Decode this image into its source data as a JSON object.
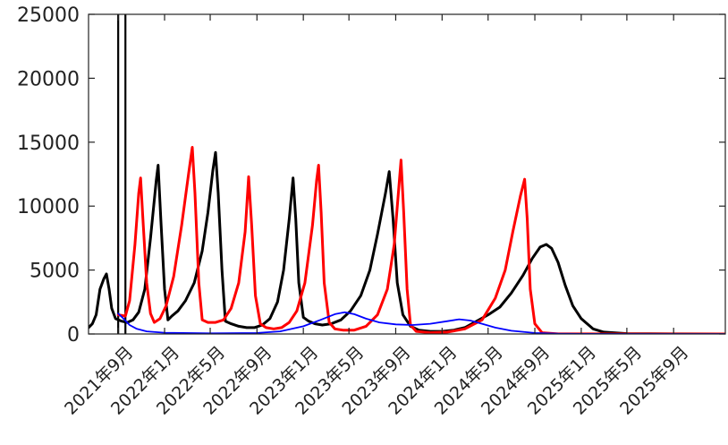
{
  "chart_data": {
    "type": "line",
    "title": "",
    "xlabel": "",
    "ylabel": "",
    "ylim": [
      0,
      25000
    ],
    "yticks": [
      0,
      5000,
      10000,
      15000,
      20000,
      25000
    ],
    "xlim": [
      "2021-06-15",
      "2026-01-15"
    ],
    "x_ticks": [
      {
        "date": "2021-09-01",
        "label": "2021年9月"
      },
      {
        "date": "2022-01-01",
        "label": "2022年1月"
      },
      {
        "date": "2022-05-01",
        "label": "2022年5月"
      },
      {
        "date": "2022-09-01",
        "label": "2022年9月"
      },
      {
        "date": "2023-01-01",
        "label": "2023年1月"
      },
      {
        "date": "2023-05-01",
        "label": "2023年5月"
      },
      {
        "date": "2023-09-01",
        "label": "2023年9月"
      },
      {
        "date": "2024-01-01",
        "label": "2024年1月"
      },
      {
        "date": "2024-05-01",
        "label": "2024年5月"
      },
      {
        "date": "2024-09-01",
        "label": "2024年9月"
      },
      {
        "date": "2025-01-01",
        "label": "2025年1月"
      },
      {
        "date": "2025-05-01",
        "label": "2025年5月"
      },
      {
        "date": "2025-09-01",
        "label": "2025年9月"
      }
    ],
    "vertical_lines": [
      "2021-09-01",
      "2021-09-20"
    ],
    "grid": false,
    "series": [
      {
        "color": "#000000",
        "points": [
          [
            "2021-06-15",
            500
          ],
          [
            "2021-06-25",
            800
          ],
          [
            "2021-07-05",
            1500
          ],
          [
            "2021-07-15",
            3500
          ],
          [
            "2021-07-25",
            4300
          ],
          [
            "2021-08-01",
            4700
          ],
          [
            "2021-08-08",
            3500
          ],
          [
            "2021-08-15",
            2000
          ],
          [
            "2021-08-25",
            1200
          ],
          [
            "2021-09-10",
            1000
          ],
          [
            "2021-09-25",
            900
          ],
          [
            "2021-10-10",
            1100
          ],
          [
            "2021-10-25",
            1700
          ],
          [
            "2021-11-10",
            3500
          ],
          [
            "2021-11-25",
            7500
          ],
          [
            "2021-12-10",
            12000
          ],
          [
            "2021-12-15",
            13200
          ],
          [
            "2021-12-22",
            9000
          ],
          [
            "2022-01-01",
            3500
          ],
          [
            "2022-01-10",
            1100
          ],
          [
            "2022-01-20",
            1400
          ],
          [
            "2022-02-05",
            1800
          ],
          [
            "2022-02-25",
            2600
          ],
          [
            "2022-03-20",
            4000
          ],
          [
            "2022-04-10",
            6500
          ],
          [
            "2022-04-25",
            9500
          ],
          [
            "2022-05-08",
            12800
          ],
          [
            "2022-05-15",
            14200
          ],
          [
            "2022-05-22",
            11000
          ],
          [
            "2022-06-01",
            5000
          ],
          [
            "2022-06-10",
            1000
          ],
          [
            "2022-06-25",
            800
          ],
          [
            "2022-07-15",
            600
          ],
          [
            "2022-08-05",
            500
          ],
          [
            "2022-08-25",
            500
          ],
          [
            "2022-09-15",
            700
          ],
          [
            "2022-10-05",
            1200
          ],
          [
            "2022-10-25",
            2500
          ],
          [
            "2022-11-10",
            5000
          ],
          [
            "2022-11-25",
            9000
          ],
          [
            "2022-12-05",
            12200
          ],
          [
            "2022-12-12",
            9000
          ],
          [
            "2022-12-20",
            4000
          ],
          [
            "2023-01-01",
            1300
          ],
          [
            "2023-01-15",
            1000
          ],
          [
            "2023-02-01",
            800
          ],
          [
            "2023-02-20",
            700
          ],
          [
            "2023-03-15",
            800
          ],
          [
            "2023-04-10",
            1100
          ],
          [
            "2023-05-05",
            1800
          ],
          [
            "2023-06-01",
            3000
          ],
          [
            "2023-06-25",
            5000
          ],
          [
            "2023-07-15",
            7800
          ],
          [
            "2023-08-05",
            11000
          ],
          [
            "2023-08-15",
            12700
          ],
          [
            "2023-08-25",
            9000
          ],
          [
            "2023-09-05",
            4000
          ],
          [
            "2023-09-20",
            1500
          ],
          [
            "2023-10-10",
            600
          ],
          [
            "2023-11-01",
            300
          ],
          [
            "2023-12-01",
            200
          ],
          [
            "2024-01-01",
            200
          ],
          [
            "2024-02-01",
            300
          ],
          [
            "2024-03-01",
            500
          ],
          [
            "2024-04-01",
            1000
          ],
          [
            "2024-05-01",
            1500
          ],
          [
            "2024-06-01",
            2100
          ],
          [
            "2024-07-01",
            3200
          ],
          [
            "2024-08-01",
            4600
          ],
          [
            "2024-08-25",
            5900
          ],
          [
            "2024-09-15",
            6800
          ],
          [
            "2024-10-01",
            7000
          ],
          [
            "2024-10-15",
            6700
          ],
          [
            "2024-11-01",
            5600
          ],
          [
            "2024-11-20",
            3800
          ],
          [
            "2024-12-10",
            2200
          ],
          [
            "2025-01-01",
            1200
          ],
          [
            "2025-02-01",
            400
          ],
          [
            "2025-03-01",
            150
          ],
          [
            "2025-05-01",
            30
          ],
          [
            "2025-09-01",
            5
          ],
          [
            "2026-01-15",
            0
          ]
        ]
      },
      {
        "color": "#ff0000",
        "points": [
          [
            "2021-09-01",
            1500
          ],
          [
            "2021-09-20",
            1400
          ],
          [
            "2021-10-01",
            2600
          ],
          [
            "2021-10-15",
            7000
          ],
          [
            "2021-10-25",
            11000
          ],
          [
            "2021-10-30",
            12200
          ],
          [
            "2021-11-05",
            9000
          ],
          [
            "2021-11-15",
            4000
          ],
          [
            "2021-11-25",
            1600
          ],
          [
            "2021-12-05",
            900
          ],
          [
            "2021-12-20",
            1200
          ],
          [
            "2022-01-05",
            2200
          ],
          [
            "2022-01-25",
            4500
          ],
          [
            "2022-02-15",
            8500
          ],
          [
            "2022-03-05",
            12500
          ],
          [
            "2022-03-15",
            14600
          ],
          [
            "2022-03-22",
            11000
          ],
          [
            "2022-04-01",
            4000
          ],
          [
            "2022-04-10",
            1100
          ],
          [
            "2022-04-25",
            900
          ],
          [
            "2022-05-15",
            900
          ],
          [
            "2022-06-05",
            1100
          ],
          [
            "2022-06-25",
            2000
          ],
          [
            "2022-07-15",
            4000
          ],
          [
            "2022-08-01",
            8000
          ],
          [
            "2022-08-10",
            12300
          ],
          [
            "2022-08-18",
            8500
          ],
          [
            "2022-08-28",
            3000
          ],
          [
            "2022-09-10",
            800
          ],
          [
            "2022-09-25",
            500
          ],
          [
            "2022-10-15",
            400
          ],
          [
            "2022-11-05",
            500
          ],
          [
            "2022-11-25",
            900
          ],
          [
            "2022-12-15",
            1800
          ],
          [
            "2023-01-05",
            4000
          ],
          [
            "2023-01-25",
            8500
          ],
          [
            "2023-02-05",
            12000
          ],
          [
            "2023-02-10",
            13200
          ],
          [
            "2023-02-17",
            9500
          ],
          [
            "2023-02-25",
            4000
          ],
          [
            "2023-03-10",
            900
          ],
          [
            "2023-03-25",
            400
          ],
          [
            "2023-04-15",
            300
          ],
          [
            "2023-05-15",
            300
          ],
          [
            "2023-06-15",
            600
          ],
          [
            "2023-07-15",
            1500
          ],
          [
            "2023-08-10",
            3500
          ],
          [
            "2023-08-28",
            7000
          ],
          [
            "2023-09-08",
            11000
          ],
          [
            "2023-09-15",
            13600
          ],
          [
            "2023-09-22",
            9500
          ],
          [
            "2023-10-01",
            3500
          ],
          [
            "2023-10-10",
            700
          ],
          [
            "2023-10-25",
            200
          ],
          [
            "2023-12-01",
            100
          ],
          [
            "2024-01-15",
            150
          ],
          [
            "2024-03-01",
            400
          ],
          [
            "2024-04-15",
            1100
          ],
          [
            "2024-05-20",
            2800
          ],
          [
            "2024-06-15",
            5000
          ],
          [
            "2024-07-05",
            8000
          ],
          [
            "2024-07-25",
            10800
          ],
          [
            "2024-08-05",
            12100
          ],
          [
            "2024-08-12",
            9000
          ],
          [
            "2024-08-20",
            3500
          ],
          [
            "2024-09-01",
            800
          ],
          [
            "2024-09-20",
            100
          ],
          [
            "2024-11-01",
            10
          ],
          [
            "2026-01-15",
            0
          ]
        ]
      },
      {
        "color": "#0000ff",
        "points": [
          [
            "2021-09-01",
            1600
          ],
          [
            "2021-09-15",
            1200
          ],
          [
            "2021-10-01",
            700
          ],
          [
            "2021-10-20",
            400
          ],
          [
            "2021-11-15",
            200
          ],
          [
            "2022-01-01",
            100
          ],
          [
            "2022-05-01",
            50
          ],
          [
            "2022-09-01",
            80
          ],
          [
            "2022-11-01",
            200
          ],
          [
            "2023-01-01",
            600
          ],
          [
            "2023-02-15",
            1100
          ],
          [
            "2023-03-25",
            1550
          ],
          [
            "2023-04-20",
            1700
          ],
          [
            "2023-05-15",
            1550
          ],
          [
            "2023-06-15",
            1200
          ],
          [
            "2023-07-20",
            900
          ],
          [
            "2023-09-01",
            750
          ],
          [
            "2023-10-15",
            700
          ],
          [
            "2023-12-01",
            800
          ],
          [
            "2024-01-15",
            1000
          ],
          [
            "2024-02-15",
            1150
          ],
          [
            "2024-03-15",
            1050
          ],
          [
            "2024-04-15",
            800
          ],
          [
            "2024-05-20",
            500
          ],
          [
            "2024-07-01",
            250
          ],
          [
            "2024-09-01",
            80
          ],
          [
            "2024-11-01",
            20
          ],
          [
            "2025-01-01",
            5
          ],
          [
            "2026-01-15",
            0
          ]
        ]
      }
    ]
  }
}
